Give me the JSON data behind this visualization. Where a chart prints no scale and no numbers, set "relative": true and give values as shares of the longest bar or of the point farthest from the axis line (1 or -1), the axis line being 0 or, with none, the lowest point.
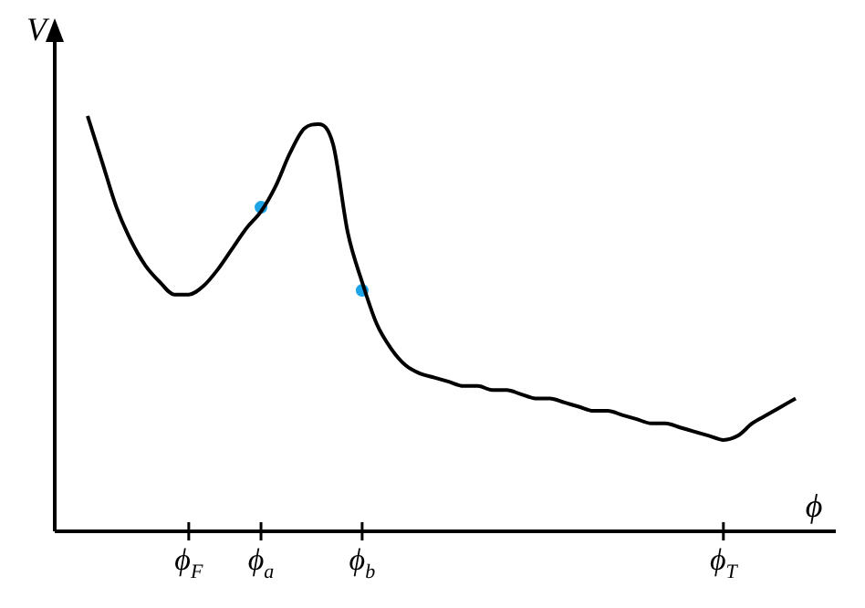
{
  "chart_data": {
    "type": "line",
    "relative": true,
    "xlabel": "ϕ",
    "ylabel": "V",
    "categories": [
      null,
      null,
      null,
      null,
      null,
      null,
      null,
      "ϕ$_{F}$",
      null,
      null,
      null,
      null,
      "ϕ$_{a}$",
      null,
      null,
      null,
      null,
      null,
      null,
      "ϕ$_{b}$",
      null,
      null,
      null,
      null,
      null,
      null,
      null,
      null,
      null,
      null,
      null,
      null,
      null,
      null,
      null,
      null,
      null,
      null,
      null,
      null,
      null,
      null,
      null,
      null,
      "ϕ$_{T}$",
      null,
      null,
      null,
      null,
      null
    ],
    "series": [
      {
        "color": "#000000",
        "values": [
          1.0,
          0.89,
          0.78,
          0.7,
          0.64,
          0.6,
          0.57,
          0.57,
          0.59,
          0.63,
          0.68,
          0.73,
          0.77,
          0.83,
          0.91,
          0.97,
          0.98,
          0.93,
          0.72,
          0.6,
          0.5,
          0.44,
          0.4,
          0.38,
          0.37,
          0.36,
          0.35,
          0.35,
          0.34,
          0.34,
          0.33,
          0.32,
          0.32,
          0.31,
          0.3,
          0.29,
          0.29,
          0.28,
          0.27,
          0.26,
          0.26,
          0.25,
          0.24,
          0.23,
          0.22,
          0.23,
          0.26,
          0.28,
          0.3,
          0.32
        ]
      },
      {
        "type": "scatter",
        "color": "#1ea5e8",
        "marker": "circle",
        "values": [
          null,
          null,
          null,
          null,
          null,
          null,
          null,
          null,
          null,
          null,
          null,
          null,
          0.78,
          null,
          null,
          null,
          null,
          null,
          null,
          0.58,
          null,
          null,
          null,
          null,
          null,
          null,
          null,
          null,
          null,
          null,
          null,
          null,
          null,
          null,
          null,
          null,
          null,
          null,
          null,
          null,
          null,
          null,
          null,
          null,
          null,
          null,
          null,
          null,
          null,
          null
        ]
      }
    ]
  }
}
